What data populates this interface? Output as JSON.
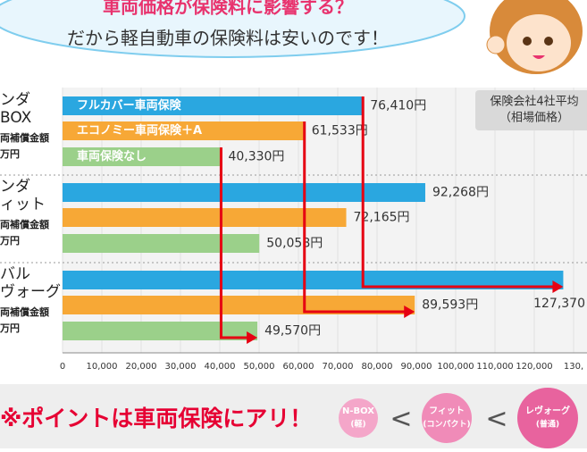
{
  "header": {
    "title": "車両価格が保険料に影響する？",
    "subtitle": "だから軽自動車の保険料は安いのです！"
  },
  "chart_data": {
    "type": "bar",
    "orientation": "horizontal",
    "categories": [
      [
        "ンダ",
        "BOX",
        "両補償金額",
        "万円"
      ],
      [
        "ンダ",
        "ィット",
        "両補償金額",
        "万円"
      ],
      [
        "バル",
        "ヴォーグ",
        "両補償金額",
        "万円"
      ]
    ],
    "series": [
      {
        "name": "フルカバー車両保険",
        "color": "#2aa7e0",
        "values": [
          76410,
          92268,
          127370
        ],
        "value_labels": [
          "76,410円",
          "92,268円",
          "127,370"
        ]
      },
      {
        "name": "エコノミー車両保険＋A",
        "color": "#f7a836",
        "values": [
          61533,
          72165,
          89593
        ],
        "value_labels": [
          "61,533円",
          "72,165円",
          "89,593円"
        ]
      },
      {
        "name": "車両保険なし",
        "color": "#9bd08a",
        "values": [
          40330,
          50058,
          49570
        ],
        "value_labels": [
          "40,330円",
          "50,058円",
          "49,570円"
        ]
      }
    ],
    "xlim": [
      0,
      130000
    ],
    "xticks": [
      0,
      {
        "value": 10000,
        "label": "10,000"
      },
      {
        "value": 20000,
        "label": "20,000"
      },
      {
        "value": 30000,
        "label": "30,000"
      },
      {
        "value": 40000,
        "label": "40,000"
      },
      {
        "value": 50000,
        "label": "50,000"
      },
      {
        "value": 60000,
        "label": "60,000"
      },
      {
        "value": 70000,
        "label": "70,000"
      },
      {
        "value": 80000,
        "label": "80,000"
      },
      {
        "value": 90000,
        "label": "90,000"
      },
      {
        "value": 100000,
        "label": "100,000"
      },
      {
        "value": 110000,
        "label": "110,000"
      },
      {
        "value": 120000,
        "label": "120,000"
      },
      {
        "value": 130000,
        "label": "130,"
      }
    ],
    "annotation": [
      "保険会社4社平均",
      "（相場価格）"
    ]
  },
  "footer": {
    "point": "※ポイントは車両保険にアリ！",
    "badges": [
      [
        "N-BOX",
        "(軽)"
      ],
      [
        "フィット",
        "(コンパクト)"
      ],
      [
        "レヴォーグ",
        "(普通)"
      ]
    ],
    "separators": [
      "<",
      "<"
    ]
  }
}
